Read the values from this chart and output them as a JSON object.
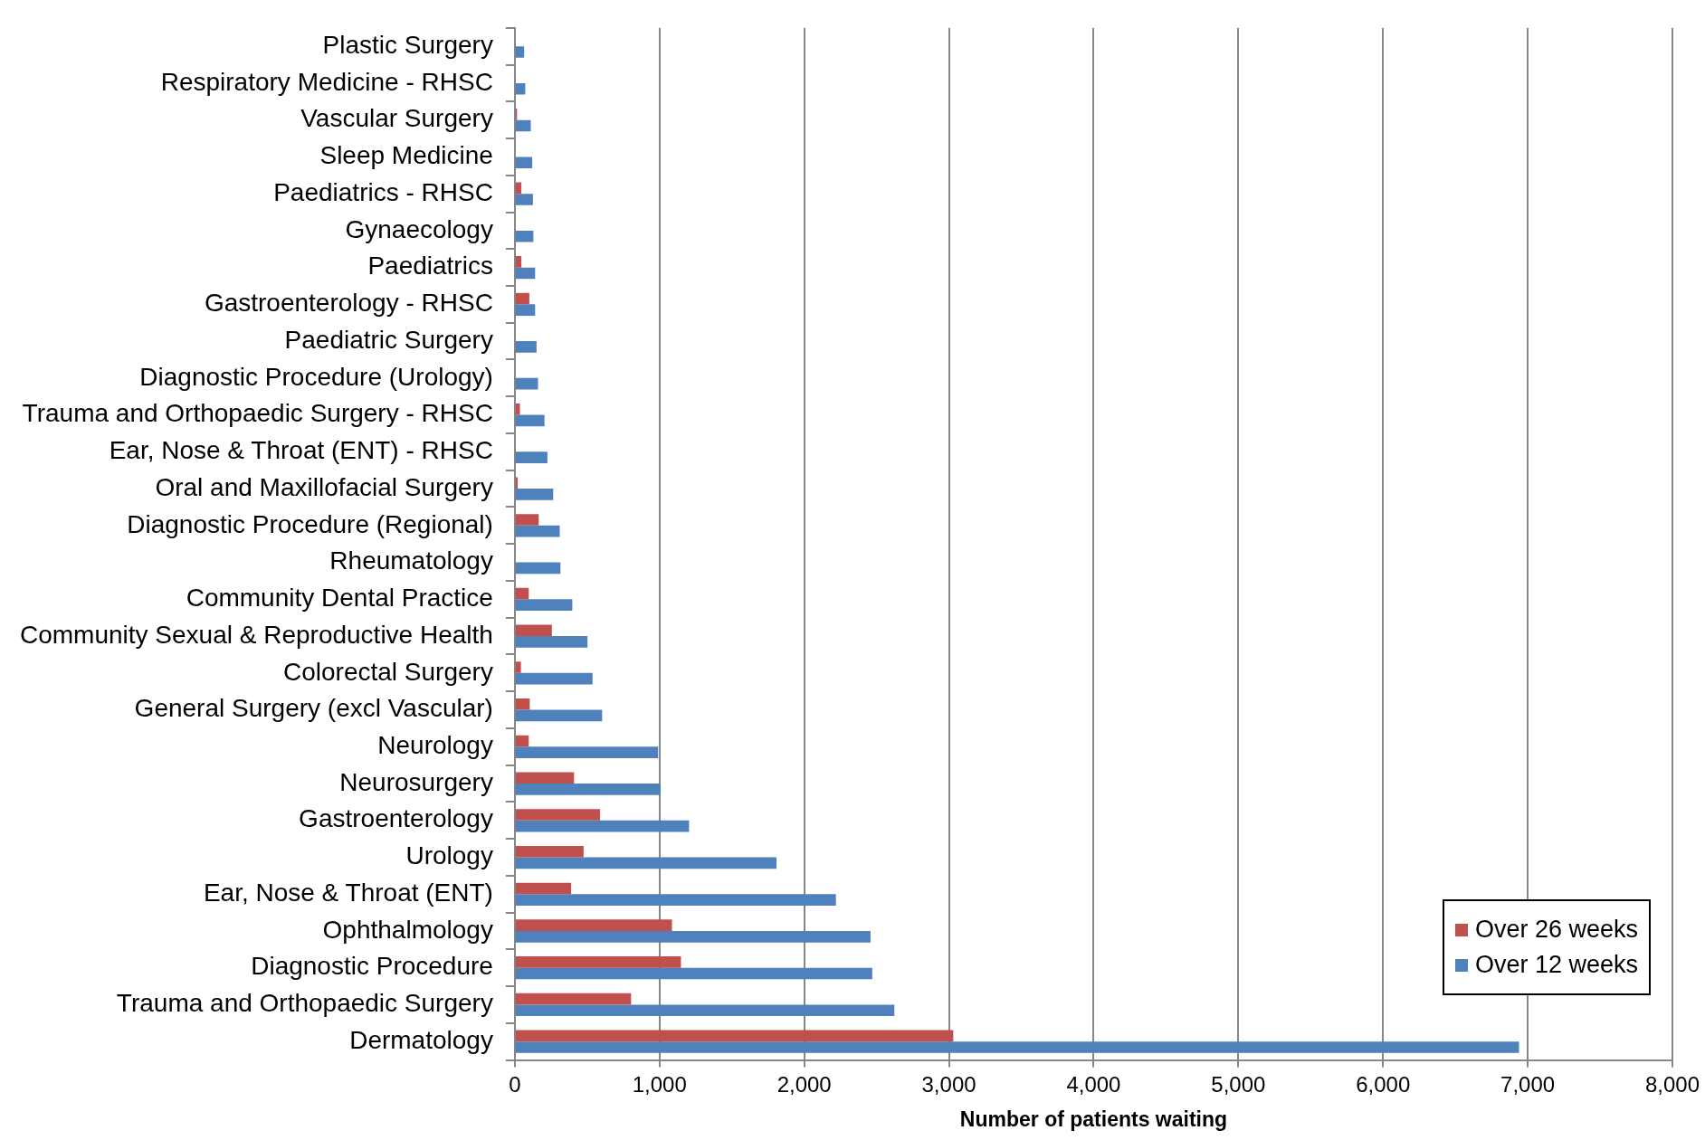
{
  "chart_data": {
    "type": "bar",
    "orientation": "horizontal",
    "xlabel": "Number of patients waiting",
    "categories": [
      "Plastic Surgery",
      "Respiratory Medicine - RHSC",
      "Vascular Surgery",
      "Sleep Medicine",
      "Paediatrics - RHSC",
      "Gynaecology",
      "Paediatrics",
      "Gastroenterology - RHSC",
      "Paediatric Surgery",
      "Diagnostic Procedure (Urology)",
      "Trauma and Orthopaedic Surgery - RHSC",
      "Ear, Nose & Throat (ENT) - RHSC",
      "Oral and Maxillofacial Surgery",
      "Diagnostic Procedure (Regional)",
      "Rheumatology",
      "Community Dental Practice",
      "Community Sexual & Reproductive Health",
      "Colorectal Surgery",
      "General Surgery (excl Vascular)",
      "Neurology",
      "Neurosurgery",
      "Gastroenterology",
      "Urology",
      "Ear, Nose & Throat (ENT)",
      "Ophthalmology",
      "Diagnostic Procedure",
      "Trauma and Orthopaedic Surgery",
      "Dermatology"
    ],
    "series": [
      {
        "name": "Over 26 weeks",
        "color": "#c0504d",
        "values": [
          0,
          0,
          15,
          0,
          45,
          null,
          45,
          100,
          0,
          0,
          35,
          null,
          20,
          165,
          null,
          96,
          256,
          42,
          103,
          96,
          409,
          589,
          475,
          389,
          1086,
          1148,
          803,
          3030
        ]
      },
      {
        "name": "Over 12 weeks",
        "color": "#4f81bd",
        "values": [
          64,
          72,
          110,
          120,
          125,
          128,
          140,
          140,
          150,
          160,
          205,
          225,
          265,
          310,
          315,
          397,
          502,
          537,
          603,
          990,
          1007,
          1204,
          1808,
          2219,
          2458,
          2470,
          2623,
          6940
        ]
      }
    ],
    "xlim": [
      0,
      8000
    ],
    "xticks": [
      {
        "value": 0,
        "label": "0"
      },
      {
        "value": 1000,
        "label": "1,000"
      },
      {
        "value": 2000,
        "label": "2,000"
      },
      {
        "value": 3000,
        "label": "3,000"
      },
      {
        "value": 4000,
        "label": "4,000"
      },
      {
        "value": 5000,
        "label": "5,000"
      },
      {
        "value": 6000,
        "label": "6,000"
      },
      {
        "value": 7000,
        "label": "7,000"
      },
      {
        "value": 8000,
        "label": "8,000"
      }
    ],
    "grid": "x",
    "legend": "bottom right"
  }
}
